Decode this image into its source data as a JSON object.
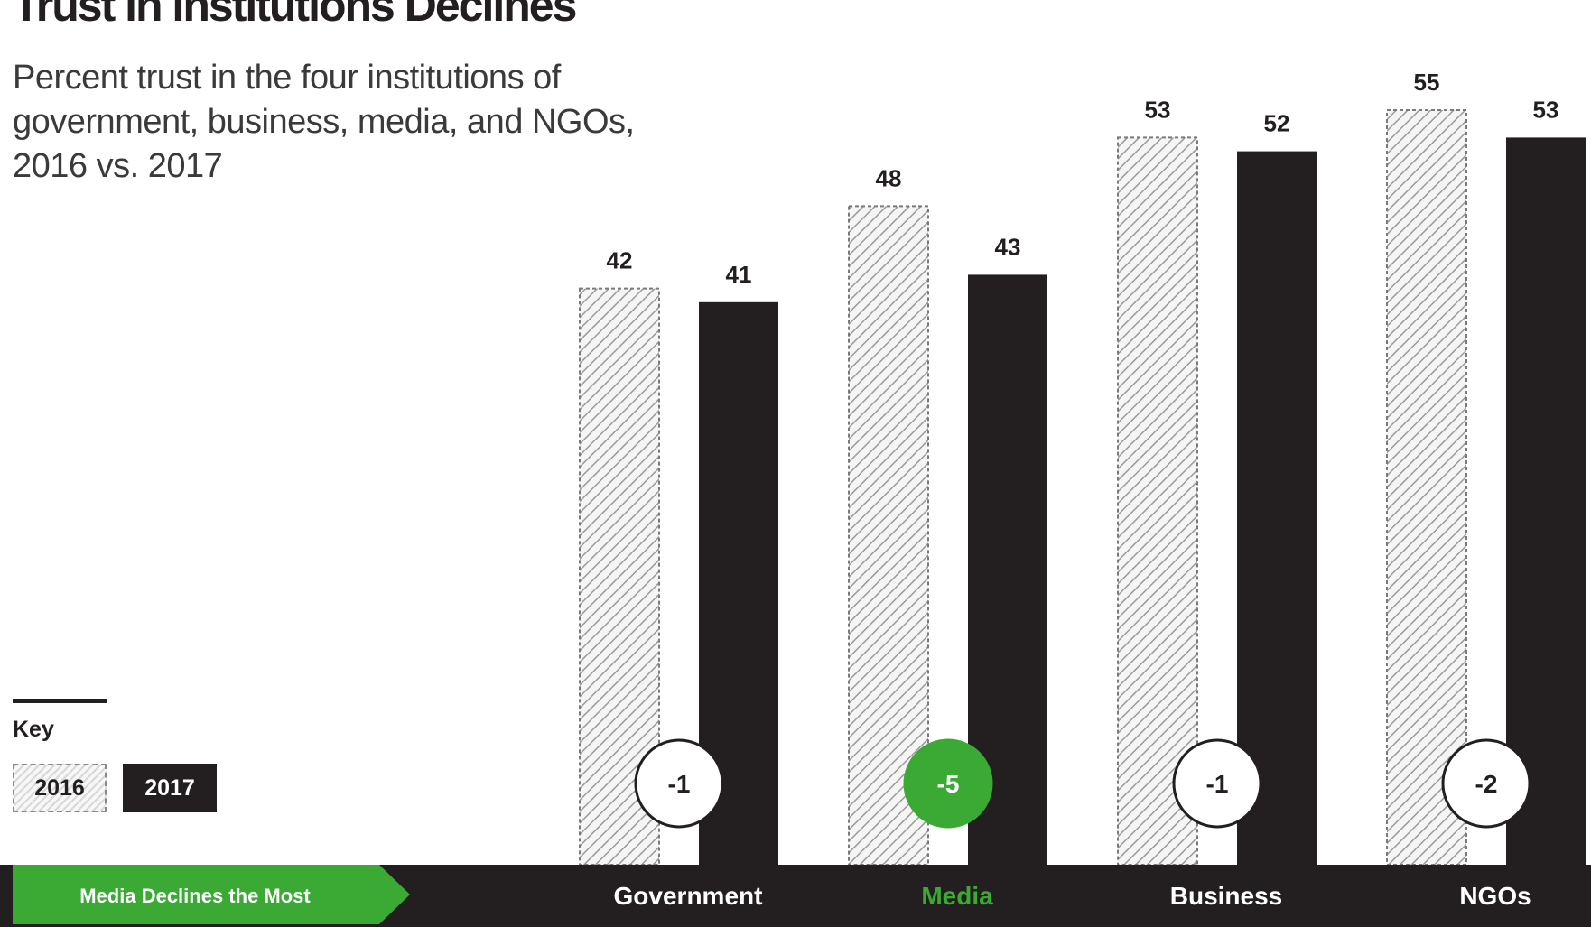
{
  "header": {
    "title": "Trust in Institutions Declines",
    "subtitle": "Percent trust in the four institutions of government, business, media, and NGOs, 2016 vs. 2017"
  },
  "key": {
    "label": "Key",
    "item_2016": "2016",
    "item_2017": "2017"
  },
  "banner": {
    "label": "Media Declines the Most"
  },
  "colors": {
    "ink": "#231f20",
    "accent_green": "#3aaa35",
    "hatch_light": "#f5f5f5",
    "hatch_dark": "#9a9a9a"
  },
  "chart_data": {
    "type": "bar",
    "title": "Trust in Institutions Declines",
    "subtitle": "Percent trust in the four institutions of government, business, media, and NGOs, 2016 vs. 2017",
    "categories": [
      "Government",
      "Media",
      "Business",
      "NGOs"
    ],
    "series": [
      {
        "name": "2016",
        "values": [
          42,
          48,
          53,
          55
        ],
        "style": "hatched"
      },
      {
        "name": "2017",
        "values": [
          41,
          43,
          52,
          53
        ],
        "style": "solid",
        "color": "#231f20"
      }
    ],
    "changes": [
      "-1",
      "-5",
      "-1",
      "-2"
    ],
    "highlight_category": "Media",
    "highlight_color": "#3aaa35",
    "ylim": [
      0,
      55
    ],
    "grid": false,
    "legend_position": "bottom-left",
    "xlabel": "",
    "ylabel": ""
  }
}
